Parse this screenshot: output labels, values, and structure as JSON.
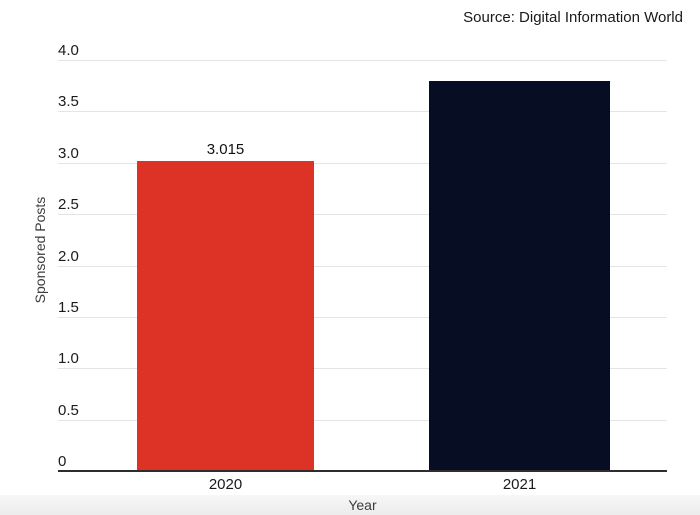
{
  "source_label": "Source: Digital Information World",
  "chart_data": {
    "type": "bar",
    "title": "",
    "source": "Source: Digital Information World",
    "categories": [
      "2020",
      "2021"
    ],
    "values": [
      3.015,
      3.8
    ],
    "value_labels": [
      "3.015",
      ""
    ],
    "xlabel": "Year",
    "ylabel": "Sponsored Posts",
    "ylim": [
      0,
      4.0
    ],
    "yticks": [
      0,
      0.5,
      1.0,
      1.5,
      2.0,
      2.5,
      3.0,
      3.5,
      4.0
    ],
    "ytick_labels": [
      "0",
      "0.5",
      "1.0",
      "1.5",
      "2.0",
      "2.5",
      "3.0",
      "3.5",
      "4.0"
    ],
    "grid": true,
    "legend": false,
    "bar_colors": [
      "#dd3327",
      "#070e23"
    ],
    "gridline_color": "#e4e4e4",
    "axis_line_color": "#2d2d2d"
  }
}
